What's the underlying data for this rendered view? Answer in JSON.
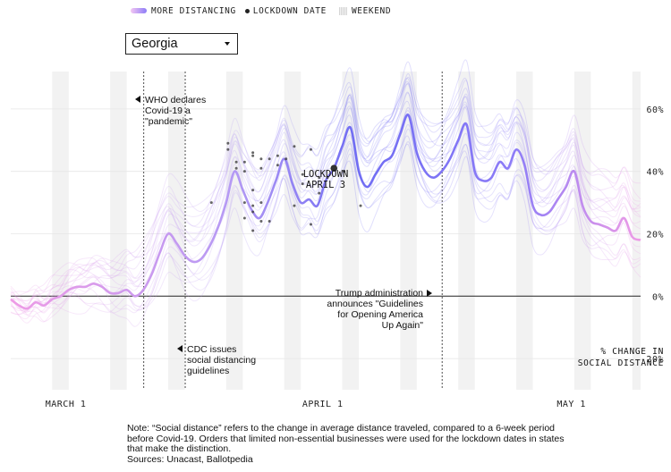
{
  "legend": {
    "more_distancing": "MORE DISTANCING",
    "lockdown_date": "LOCKDOWN DATE",
    "weekend": "WEEKEND"
  },
  "state_select": {
    "selected": "Georgia"
  },
  "annotations": {
    "who": [
      "WHO declares",
      "Covid-19 a",
      "\"pandemic\""
    ],
    "cdc": [
      "CDC issues",
      "social distancing",
      "guidelines"
    ],
    "trump": [
      "Trump administration",
      "announces \"Guidelines",
      "for Opening America",
      "Up Again\""
    ],
    "lockdown": [
      "LOCKDOWN",
      "APRIL 3"
    ]
  },
  "caption": [
    "% CHANGE IN",
    "SOCIAL DISTANCE"
  ],
  "note": {
    "text": "Note: “Social distance” refers to the change in average distance traveled, compared to a 6-week period before Covid-19. Orders that limited non-essential businesses were used for the lockdown dates in states that make the distinction.",
    "sources": "Sources: Unacast, Ballotpedia"
  },
  "colors": {
    "pink": "#ee9be6",
    "purple": "#6f6cf3",
    "weekend": "#d9d9d9"
  },
  "chart_data": {
    "type": "line",
    "title": "",
    "xlabel": "",
    "ylabel": "% CHANGE IN SOCIAL DISTANCE",
    "x_start": "2020-02-24",
    "x_end": "2020-05-10",
    "xlim": [
      "2020-02-24",
      "2020-05-10"
    ],
    "ylim": [
      -0.3,
      0.72
    ],
    "yticks": [
      {
        "value": 0.6,
        "label": "60%"
      },
      {
        "value": 0.4,
        "label": "40%"
      },
      {
        "value": 0.2,
        "label": "20%"
      },
      {
        "value": 0,
        "label": "0%"
      },
      {
        "value": -0.2,
        "label": "-20%"
      }
    ],
    "xticks": [
      {
        "date": "2020-03-01",
        "label": "MARCH 1"
      },
      {
        "date": "2020-04-01",
        "label": "APRIL 1"
      },
      {
        "date": "2020-05-01",
        "label": "MAY 1"
      }
    ],
    "event_lines": [
      "2020-03-11",
      "2020-03-16",
      "2020-04-16"
    ],
    "series": [
      {
        "name": "Georgia",
        "highlight": true,
        "x": [
          "2020-02-24",
          "2020-02-25",
          "2020-02-26",
          "2020-02-27",
          "2020-02-28",
          "2020-02-29",
          "2020-03-01",
          "2020-03-02",
          "2020-03-03",
          "2020-03-04",
          "2020-03-05",
          "2020-03-06",
          "2020-03-07",
          "2020-03-08",
          "2020-03-09",
          "2020-03-10",
          "2020-03-11",
          "2020-03-12",
          "2020-03-13",
          "2020-03-14",
          "2020-03-15",
          "2020-03-16",
          "2020-03-17",
          "2020-03-18",
          "2020-03-19",
          "2020-03-20",
          "2020-03-21",
          "2020-03-22",
          "2020-03-23",
          "2020-03-24",
          "2020-03-25",
          "2020-03-26",
          "2020-03-27",
          "2020-03-28",
          "2020-03-29",
          "2020-03-30",
          "2020-03-31",
          "2020-04-01",
          "2020-04-02",
          "2020-04-03",
          "2020-04-04",
          "2020-04-05",
          "2020-04-06",
          "2020-04-07",
          "2020-04-08",
          "2020-04-09",
          "2020-04-10",
          "2020-04-11",
          "2020-04-12",
          "2020-04-13",
          "2020-04-14",
          "2020-04-15",
          "2020-04-16",
          "2020-04-17",
          "2020-04-18",
          "2020-04-19",
          "2020-04-20",
          "2020-04-21",
          "2020-04-22",
          "2020-04-23",
          "2020-04-24",
          "2020-04-25",
          "2020-04-26",
          "2020-04-27",
          "2020-04-28",
          "2020-04-29",
          "2020-04-30",
          "2020-05-01",
          "2020-05-02",
          "2020-05-03",
          "2020-05-04",
          "2020-05-05",
          "2020-05-06",
          "2020-05-07",
          "2020-05-08",
          "2020-05-09",
          "2020-05-10"
        ],
        "y": [
          -0.01,
          -0.03,
          -0.04,
          -0.02,
          -0.03,
          -0.01,
          0.0,
          0.02,
          0.03,
          0.03,
          0.04,
          0.03,
          0.01,
          0.01,
          0.02,
          0.0,
          0.02,
          0.07,
          0.14,
          0.2,
          0.17,
          0.13,
          0.11,
          0.12,
          0.16,
          0.22,
          0.3,
          0.4,
          0.34,
          0.28,
          0.25,
          0.3,
          0.37,
          0.44,
          0.36,
          0.3,
          0.31,
          0.29,
          0.37,
          0.41,
          0.48,
          0.54,
          0.4,
          0.35,
          0.39,
          0.43,
          0.45,
          0.52,
          0.58,
          0.46,
          0.4,
          0.38,
          0.4,
          0.44,
          0.5,
          0.55,
          0.4,
          0.37,
          0.38,
          0.43,
          0.41,
          0.47,
          0.42,
          0.29,
          0.26,
          0.27,
          0.31,
          0.35,
          0.4,
          0.29,
          0.24,
          0.23,
          0.22,
          0.21,
          0.25,
          0.19,
          0.18
        ]
      }
    ],
    "lockdown_points": [
      {
        "date": "2020-03-19",
        "y": 0.3
      },
      {
        "date": "2020-03-21",
        "y": 0.49
      },
      {
        "date": "2020-03-21",
        "y": 0.47
      },
      {
        "date": "2020-03-22",
        "y": 0.43
      },
      {
        "date": "2020-03-22",
        "y": 0.41
      },
      {
        "date": "2020-03-23",
        "y": 0.25
      },
      {
        "date": "2020-03-23",
        "y": 0.3
      },
      {
        "date": "2020-03-23",
        "y": 0.43
      },
      {
        "date": "2020-03-23",
        "y": 0.4
      },
      {
        "date": "2020-03-24",
        "y": 0.46
      },
      {
        "date": "2020-03-24",
        "y": 0.45
      },
      {
        "date": "2020-03-24",
        "y": 0.21
      },
      {
        "date": "2020-03-24",
        "y": 0.27
      },
      {
        "date": "2020-03-24",
        "y": 0.34
      },
      {
        "date": "2020-03-24",
        "y": 0.29
      },
      {
        "date": "2020-03-25",
        "y": 0.44
      },
      {
        "date": "2020-03-25",
        "y": 0.3
      },
      {
        "date": "2020-03-25",
        "y": 0.24
      },
      {
        "date": "2020-03-25",
        "y": 0.41
      },
      {
        "date": "2020-03-26",
        "y": 0.44
      },
      {
        "date": "2020-03-26",
        "y": 0.24
      },
      {
        "date": "2020-03-27",
        "y": 0.45
      },
      {
        "date": "2020-03-27",
        "y": 0.42
      },
      {
        "date": "2020-03-28",
        "y": 0.44
      },
      {
        "date": "2020-03-29",
        "y": 0.48
      },
      {
        "date": "2020-03-29",
        "y": 0.29
      },
      {
        "date": "2020-03-30",
        "y": 0.39
      },
      {
        "date": "2020-03-30",
        "y": 0.36
      },
      {
        "date": "2020-03-31",
        "y": 0.47
      },
      {
        "date": "2020-03-31",
        "y": 0.23
      },
      {
        "date": "2020-04-01",
        "y": 0.38
      },
      {
        "date": "2020-04-01",
        "y": 0.33
      },
      {
        "date": "2020-04-02",
        "y": 0.38
      },
      {
        "date": "2020-04-03",
        "y": 0.41,
        "highlight": true
      },
      {
        "date": "2020-04-04",
        "y": 0.4
      },
      {
        "date": "2020-04-06",
        "y": 0.29
      }
    ]
  }
}
